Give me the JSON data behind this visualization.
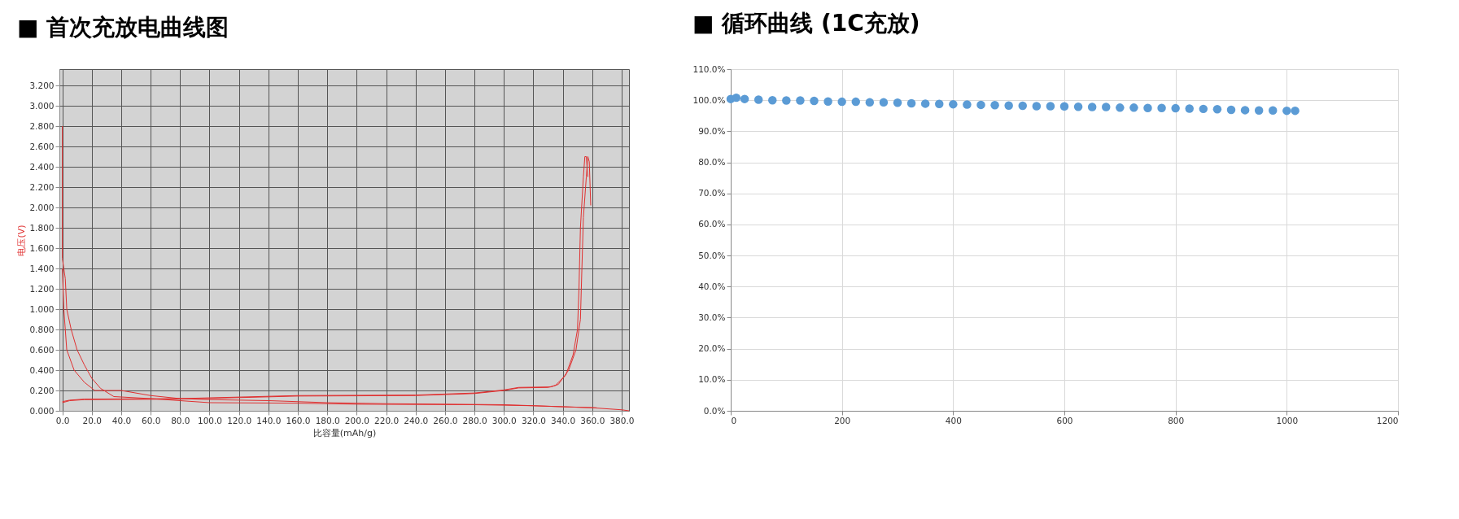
{
  "chart_data": [
    {
      "type": "line",
      "title": "■ 首次充放电曲线图",
      "xlabel": "比容量(mAh/g)",
      "ylabel": "电压(V)",
      "marker": "none",
      "line_style": "solid",
      "grid": true,
      "legend": false,
      "xlim": [
        -2,
        385
      ],
      "ylim": [
        0,
        3.36
      ],
      "xticks": [
        {
          "value": 0,
          "label": "0.0"
        },
        {
          "value": 20,
          "label": "20.0"
        },
        {
          "value": 40,
          "label": "40.0"
        },
        {
          "value": 60,
          "label": "60.0"
        },
        {
          "value": 80,
          "label": "80.0"
        },
        {
          "value": 100,
          "label": "100.0"
        },
        {
          "value": 120,
          "label": "120.0"
        },
        {
          "value": 140,
          "label": "140.0"
        },
        {
          "value": 160,
          "label": "160.0"
        },
        {
          "value": 180,
          "label": "180.0"
        },
        {
          "value": 200,
          "label": "200.0"
        },
        {
          "value": 220,
          "label": "220.0"
        },
        {
          "value": 240,
          "label": "240.0"
        },
        {
          "value": 260,
          "label": "260.0"
        },
        {
          "value": 280,
          "label": "280.0"
        },
        {
          "value": 300,
          "label": "300.0"
        },
        {
          "value": 320,
          "label": "320.0"
        },
        {
          "value": 340,
          "label": "340.0"
        },
        {
          "value": 360,
          "label": "360.0"
        },
        {
          "value": 380,
          "label": "380.0"
        }
      ],
      "yticks": [
        {
          "value": 0,
          "label": "0.000"
        },
        {
          "value": 0.2,
          "label": "0.200"
        },
        {
          "value": 0.4,
          "label": "0.400"
        },
        {
          "value": 0.6,
          "label": "0.600"
        },
        {
          "value": 0.8,
          "label": "0.800"
        },
        {
          "value": 1,
          "label": "1.000"
        },
        {
          "value": 1.2,
          "label": "1.200"
        },
        {
          "value": 1.4,
          "label": "1.400"
        },
        {
          "value": 1.6,
          "label": "1.600"
        },
        {
          "value": 1.8,
          "label": "1.800"
        },
        {
          "value": 2,
          "label": "2.000"
        },
        {
          "value": 2.2,
          "label": "2.200"
        },
        {
          "value": 2.4,
          "label": "2.400"
        },
        {
          "value": 2.6,
          "label": "2.600"
        },
        {
          "value": 2.8,
          "label": "2.800"
        },
        {
          "value": 3,
          "label": "3.000"
        },
        {
          "value": 3.2,
          "label": "3.200"
        }
      ],
      "series": [
        {
          "color": "#e03030",
          "x": [
            0,
            0,
            2,
            3,
            6,
            10,
            15,
            20,
            26,
            35,
            60,
            80,
            100,
            160,
            200,
            280,
            320,
            360,
            380,
            385
          ],
          "values": [
            2.8,
            1.5,
            1.3,
            1.0,
            0.8,
            0.6,
            0.45,
            0.32,
            0.22,
            0.14,
            0.12,
            0.1,
            0.08,
            0.075,
            0.065,
            0.06,
            0.05,
            0.03,
            0.01,
            0.0
          ]
        },
        {
          "color": "#e03030",
          "x": [
            0,
            1,
            3,
            8,
            15,
            22,
            40,
            60,
            80,
            100,
            140,
            180,
            220,
            300,
            340,
            363
          ],
          "values": [
            1.4,
            1.0,
            0.6,
            0.4,
            0.28,
            0.2,
            0.2,
            0.15,
            0.12,
            0.11,
            0.1,
            0.08,
            0.07,
            0.06,
            0.04,
            0.03
          ]
        },
        {
          "color": "#e03030",
          "x": [
            0,
            5,
            15,
            80,
            160,
            240,
            280,
            300,
            310,
            330,
            335,
            342,
            347,
            350,
            351,
            352,
            354,
            355,
            356,
            357
          ],
          "values": [
            0.08,
            0.1,
            0.11,
            0.115,
            0.145,
            0.15,
            0.17,
            0.2,
            0.225,
            0.23,
            0.25,
            0.35,
            0.55,
            0.8,
            1.2,
            1.8,
            2.3,
            2.5,
            2.5,
            2.3
          ]
        },
        {
          "color": "#e03030",
          "x": [
            0,
            5,
            15,
            80,
            160,
            240,
            280,
            300,
            310,
            332,
            337,
            344,
            349,
            352,
            353,
            354,
            356,
            357,
            358,
            359
          ],
          "values": [
            0.09,
            0.105,
            0.115,
            0.12,
            0.15,
            0.155,
            0.175,
            0.205,
            0.23,
            0.235,
            0.26,
            0.4,
            0.6,
            0.9,
            1.4,
            1.9,
            2.3,
            2.5,
            2.45,
            2.02
          ]
        }
      ]
    },
    {
      "type": "scatter",
      "title": "■ 循环曲线 (1C充放)",
      "marker": "circle",
      "grid": true,
      "legend": false,
      "xlim": [
        0,
        1200
      ],
      "xticks": [
        0,
        200,
        400,
        600,
        800,
        1000,
        1200
      ],
      "ylim": [
        0,
        110
      ],
      "yticks": [
        {
          "value": 0,
          "label": "0.0%"
        },
        {
          "value": 10,
          "label": "10.0%"
        },
        {
          "value": 20,
          "label": "20.0%"
        },
        {
          "value": 30,
          "label": "30.0%"
        },
        {
          "value": 40,
          "label": "40.0%"
        },
        {
          "value": 50,
          "label": "50.0%"
        },
        {
          "value": 60,
          "label": "60.0%"
        },
        {
          "value": 70,
          "label": "70.0%"
        },
        {
          "value": 80,
          "label": "80.0%"
        },
        {
          "value": 90,
          "label": "90.0%"
        },
        {
          "value": 100,
          "label": "100.0%"
        },
        {
          "value": 110,
          "label": "110.0%"
        }
      ],
      "series": [
        {
          "color": "#5b9bd5",
          "x": [
            0,
            10,
            25,
            50,
            75,
            100,
            125,
            150,
            175,
            200,
            225,
            250,
            275,
            300,
            325,
            350,
            375,
            400,
            425,
            450,
            475,
            500,
            525,
            550,
            575,
            600,
            625,
            650,
            675,
            700,
            725,
            750,
            775,
            800,
            825,
            850,
            875,
            900,
            925,
            950,
            975,
            1000,
            1015
          ],
          "values": [
            100.4,
            100.8,
            100.4,
            100.2,
            100.0,
            99.9,
            99.9,
            99.8,
            99.6,
            99.5,
            99.5,
            99.3,
            99.3,
            99.2,
            99.0,
            98.9,
            98.8,
            98.7,
            98.6,
            98.5,
            98.4,
            98.3,
            98.2,
            98.1,
            98.1,
            98.0,
            97.9,
            97.8,
            97.8,
            97.6,
            97.6,
            97.5,
            97.5,
            97.4,
            97.3,
            97.2,
            97.1,
            96.9,
            96.8,
            96.7,
            96.7,
            96.6,
            96.6
          ]
        }
      ]
    }
  ]
}
